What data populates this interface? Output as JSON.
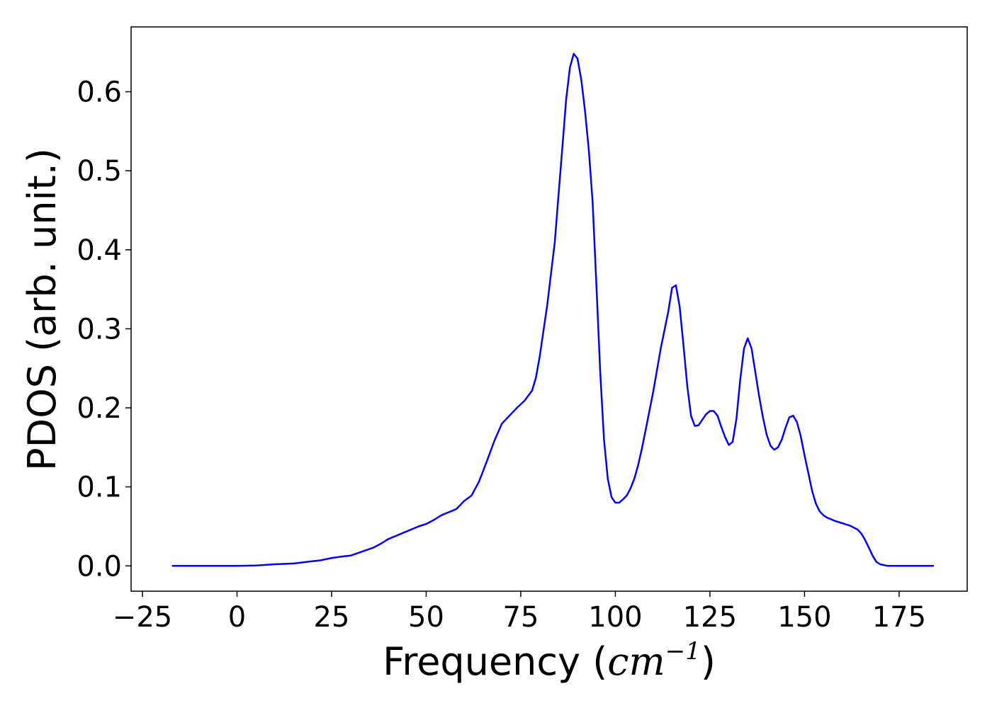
{
  "chart_data": {
    "type": "line",
    "xlabel": "Frequency (",
    "xlabel_math": "cm",
    "xlabel_sup": "−1",
    "xlabel_close": ")",
    "ylabel": "PDOS (arb. unit.)",
    "xlim": [
      -28,
      193
    ],
    "ylim": [
      -0.032,
      0.682
    ],
    "xticks": [
      -25,
      0,
      25,
      50,
      75,
      100,
      125,
      150,
      175
    ],
    "xtick_labels": [
      "−25",
      "0",
      "25",
      "50",
      "75",
      "100",
      "125",
      "150",
      "175"
    ],
    "yticks": [
      0.0,
      0.1,
      0.2,
      0.3,
      0.4,
      0.5,
      0.6
    ],
    "ytick_labels": [
      "0.0",
      "0.1",
      "0.2",
      "0.3",
      "0.4",
      "0.5",
      "0.6"
    ],
    "grid": false,
    "series": [
      {
        "color": "#0000ff",
        "x": [
          -17,
          -10,
          -5,
          0,
          5,
          10,
          15,
          20,
          22,
          25,
          28,
          30,
          33,
          36,
          38,
          40,
          42,
          45,
          48,
          50,
          52,
          54,
          56,
          58,
          60,
          62,
          64,
          66,
          68,
          70,
          72,
          74,
          76,
          78,
          79,
          80,
          82,
          84,
          85,
          86,
          87,
          88,
          89,
          90,
          91,
          92,
          93,
          94,
          95,
          96,
          97,
          98,
          99,
          100,
          101,
          102,
          103,
          104,
          105,
          106,
          107,
          108,
          110,
          112,
          114,
          115,
          116,
          117,
          118,
          119,
          120,
          121,
          122,
          123,
          124,
          125,
          126,
          127,
          128,
          129,
          130,
          131,
          132,
          133,
          134,
          135,
          136,
          137,
          138,
          139,
          140,
          141,
          142,
          143,
          144,
          145,
          146,
          147,
          148,
          149,
          150,
          151,
          152,
          153,
          154,
          155,
          156,
          157,
          158,
          160,
          162,
          164,
          165,
          166,
          167,
          168,
          169,
          170,
          172,
          175,
          180,
          184
        ],
        "y": [
          0.0,
          0.0,
          0.0,
          0.0,
          0.0005,
          0.002,
          0.003,
          0.006,
          0.007,
          0.01,
          0.012,
          0.013,
          0.018,
          0.023,
          0.028,
          0.034,
          0.038,
          0.044,
          0.05,
          0.053,
          0.058,
          0.064,
          0.068,
          0.072,
          0.082,
          0.089,
          0.107,
          0.132,
          0.158,
          0.18,
          0.19,
          0.2,
          0.209,
          0.222,
          0.238,
          0.265,
          0.33,
          0.41,
          0.47,
          0.53,
          0.59,
          0.631,
          0.648,
          0.642,
          0.615,
          0.575,
          0.525,
          0.46,
          0.355,
          0.245,
          0.16,
          0.11,
          0.087,
          0.08,
          0.08,
          0.084,
          0.089,
          0.098,
          0.11,
          0.127,
          0.148,
          0.172,
          0.22,
          0.275,
          0.322,
          0.352,
          0.355,
          0.328,
          0.28,
          0.228,
          0.19,
          0.177,
          0.178,
          0.185,
          0.192,
          0.196,
          0.196,
          0.19,
          0.176,
          0.163,
          0.153,
          0.157,
          0.186,
          0.235,
          0.275,
          0.288,
          0.275,
          0.245,
          0.215,
          0.188,
          0.166,
          0.152,
          0.147,
          0.15,
          0.16,
          0.175,
          0.188,
          0.19,
          0.182,
          0.164,
          0.14,
          0.118,
          0.095,
          0.079,
          0.069,
          0.064,
          0.061,
          0.059,
          0.057,
          0.054,
          0.051,
          0.046,
          0.041,
          0.033,
          0.023,
          0.013,
          0.005,
          0.002,
          0.0,
          0.0,
          0.0,
          0.0
        ]
      }
    ]
  }
}
